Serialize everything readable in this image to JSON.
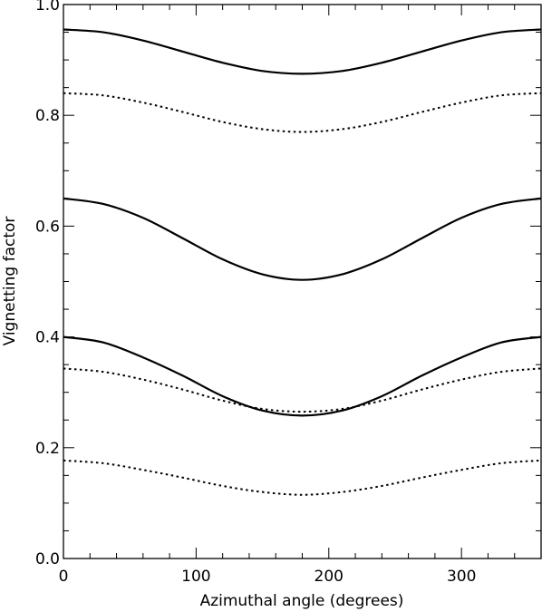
{
  "chart_data": {
    "type": "line",
    "xlabel": "Azimuthal angle (degrees)",
    "ylabel": "Vignetting factor",
    "xlim": [
      0,
      360
    ],
    "ylim": [
      0,
      1
    ],
    "x_major_ticks": [
      0,
      100,
      200,
      300
    ],
    "x_tick_labels": [
      "0",
      "100",
      "200",
      "300"
    ],
    "y_major_ticks": [
      0,
      0.2,
      0.4,
      0.6,
      0.8,
      1.0
    ],
    "y_tick_labels": [
      "0.0",
      "0.2",
      "0.4",
      "0.6",
      "0.8",
      "1.0"
    ],
    "grid": false,
    "legend": "none",
    "x_samples": [
      0,
      30,
      60,
      90,
      120,
      150,
      180,
      210,
      240,
      270,
      300,
      330,
      360
    ],
    "series": [
      {
        "style": "solid",
        "color": "#000000",
        "values": [
          0.955,
          0.95,
          0.935,
          0.915,
          0.895,
          0.88,
          0.875,
          0.88,
          0.895,
          0.915,
          0.935,
          0.95,
          0.955
        ]
      },
      {
        "style": "dotted",
        "color": "#000000",
        "values": [
          0.84,
          0.836,
          0.823,
          0.806,
          0.788,
          0.775,
          0.77,
          0.775,
          0.788,
          0.806,
          0.823,
          0.836,
          0.84
        ]
      },
      {
        "style": "solid",
        "color": "#000000",
        "values": [
          0.65,
          0.64,
          0.615,
          0.578,
          0.54,
          0.513,
          0.503,
          0.513,
          0.54,
          0.578,
          0.615,
          0.64,
          0.65
        ]
      },
      {
        "style": "solid",
        "color": "#000000",
        "values": [
          0.4,
          0.39,
          0.363,
          0.33,
          0.293,
          0.267,
          0.258,
          0.267,
          0.293,
          0.33,
          0.363,
          0.39,
          0.4
        ]
      },
      {
        "style": "dotted",
        "color": "#000000",
        "values": [
          0.343,
          0.337,
          0.323,
          0.305,
          0.285,
          0.27,
          0.265,
          0.27,
          0.285,
          0.305,
          0.323,
          0.337,
          0.343
        ]
      },
      {
        "style": "dotted",
        "color": "#000000",
        "values": [
          0.177,
          0.172,
          0.16,
          0.146,
          0.131,
          0.12,
          0.115,
          0.12,
          0.131,
          0.146,
          0.16,
          0.172,
          0.177
        ]
      }
    ]
  }
}
